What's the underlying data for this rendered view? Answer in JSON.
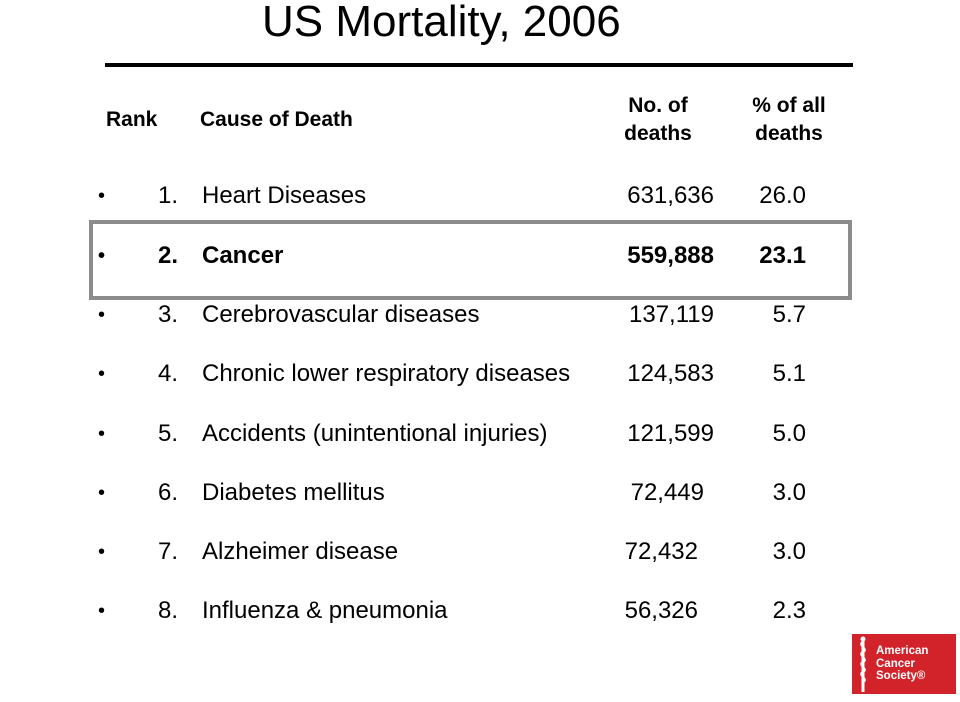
{
  "slide": {
    "title": "US Mortality, 2006"
  },
  "table": {
    "headers": {
      "rank": "Rank",
      "cause": "Cause of Death",
      "num_line1": "No. of",
      "num_line2": "deaths",
      "pct_line1": "% of all",
      "pct_line2": "deaths"
    },
    "rows": [
      {
        "rank": "1.",
        "cause": "Heart Diseases",
        "deaths": "631,636",
        "percent": "26.0",
        "highlighted": false
      },
      {
        "rank": "2.",
        "cause": "Cancer",
        "deaths": "559,888",
        "percent": "23.1",
        "highlighted": true
      },
      {
        "rank": "3.",
        "cause": "Cerebrovascular diseases",
        "deaths": "137,119",
        "percent": "5.7",
        "highlighted": false
      },
      {
        "rank": "4.",
        "cause": "Chronic lower respiratory diseases",
        "deaths": "124,583",
        "percent": "5.1",
        "highlighted": false
      },
      {
        "rank": "5.",
        "cause": "Accidents (unintentional injuries)",
        "deaths": "121,599",
        "percent": "5.0",
        "highlighted": false
      },
      {
        "rank": "6.",
        "cause": "Diabetes mellitus",
        "deaths": "72,449",
        "percent": "3.0",
        "highlighted": false
      },
      {
        "rank": "7.",
        "cause": "Alzheimer disease",
        "deaths": "72,432",
        "percent": "3.0",
        "highlighted": false
      },
      {
        "rank": "8.",
        "cause": "Influenza & pneumonia",
        "deaths": "56,326",
        "percent": "2.3",
        "highlighted": false
      }
    ]
  },
  "logo": {
    "line1": "American",
    "line2": "Cancer",
    "line3": "Society®",
    "color": "#d2232a"
  },
  "colors": {
    "highlight_border": "#8c8c8c"
  }
}
